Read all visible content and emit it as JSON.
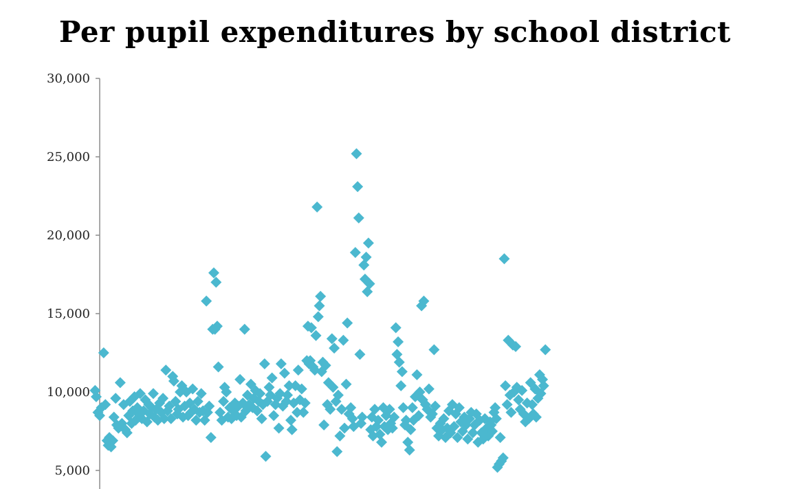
{
  "chart_data": {
    "type": "scatter",
    "title": "Per pupil expenditures by school district",
    "xlabel": "",
    "ylabel": "",
    "ylim": [
      5000,
      30000
    ],
    "yticks": [
      5000,
      10000,
      15000,
      20000,
      25000,
      30000
    ],
    "ytick_labels": [
      "5,000",
      "10,000",
      "15,000",
      "20,000",
      "25,000",
      "30,000"
    ],
    "grid": false,
    "marker": "diamond",
    "color": "#4bb8cf",
    "xlim": [
      0,
      1000
    ],
    "series": [
      {
        "points": [
          [
            4,
            10100
          ],
          [
            6,
            9700
          ],
          [
            9,
            8700
          ],
          [
            12,
            8500
          ],
          [
            15,
            9000
          ],
          [
            19,
            12500
          ],
          [
            22,
            9200
          ],
          [
            25,
            6900
          ],
          [
            27,
            6600
          ],
          [
            29,
            7100
          ],
          [
            32,
            6500
          ],
          [
            35,
            6900
          ],
          [
            37,
            8400
          ],
          [
            40,
            9600
          ],
          [
            42,
            7900
          ],
          [
            45,
            7700
          ],
          [
            48,
            10600
          ],
          [
            51,
            8000
          ],
          [
            54,
            9200
          ],
          [
            57,
            7600
          ],
          [
            60,
            7400
          ],
          [
            63,
            8500
          ],
          [
            65,
            9400
          ],
          [
            68,
            8000
          ],
          [
            70,
            8800
          ],
          [
            73,
            9700
          ],
          [
            75,
            8200
          ],
          [
            78,
            9000
          ],
          [
            80,
            8600
          ],
          [
            83,
            9900
          ],
          [
            86,
            8300
          ],
          [
            89,
            8800
          ],
          [
            92,
            9500
          ],
          [
            95,
            8100
          ],
          [
            98,
            9200
          ],
          [
            100,
            8600
          ],
          [
            103,
            9000
          ],
          [
            106,
            9900
          ],
          [
            108,
            8400
          ],
          [
            111,
            8900
          ],
          [
            114,
            8200
          ],
          [
            117,
            9300
          ],
          [
            120,
            8700
          ],
          [
            123,
            9600
          ],
          [
            125,
            8300
          ],
          [
            128,
            11400
          ],
          [
            131,
            8800
          ],
          [
            134,
            9100
          ],
          [
            137,
            8300
          ],
          [
            140,
            11000
          ],
          [
            142,
            10700
          ],
          [
            145,
            9400
          ],
          [
            148,
            8600
          ],
          [
            150,
            8900
          ],
          [
            153,
            10000
          ],
          [
            156,
            10400
          ],
          [
            158,
            8400
          ],
          [
            161,
            9100
          ],
          [
            164,
            10000
          ],
          [
            167,
            8500
          ],
          [
            170,
            9300
          ],
          [
            172,
            8700
          ],
          [
            175,
            10200
          ],
          [
            178,
            8900
          ],
          [
            181,
            8200
          ],
          [
            184,
            9400
          ],
          [
            187,
            8700
          ],
          [
            190,
            9900
          ],
          [
            193,
            8800
          ],
          [
            196,
            8200
          ],
          [
            199,
            15800
          ],
          [
            201,
            8700
          ],
          [
            204,
            9100
          ],
          [
            207,
            7100
          ],
          [
            210,
            14000
          ],
          [
            212,
            17600
          ],
          [
            214,
            14000
          ],
          [
            216,
            17000
          ],
          [
            218,
            14200
          ],
          [
            220,
            11600
          ],
          [
            223,
            8700
          ],
          [
            226,
            8200
          ],
          [
            229,
            9400
          ],
          [
            231,
            10300
          ],
          [
            234,
            10000
          ],
          [
            237,
            8400
          ],
          [
            240,
            9000
          ],
          [
            243,
            8300
          ],
          [
            246,
            8800
          ],
          [
            249,
            9300
          ],
          [
            252,
            8500
          ],
          [
            255,
            9100
          ],
          [
            258,
            10800
          ],
          [
            260,
            8400
          ],
          [
            263,
            9300
          ],
          [
            266,
            14000
          ],
          [
            268,
            8800
          ],
          [
            271,
            9800
          ],
          [
            274,
            9200
          ],
          [
            277,
            10500
          ],
          [
            280,
            9000
          ],
          [
            282,
            9600
          ],
          [
            285,
            10100
          ],
          [
            288,
            8800
          ],
          [
            291,
            9400
          ],
          [
            293,
            9900
          ],
          [
            296,
            8300
          ],
          [
            298,
            9200
          ],
          [
            301,
            11800
          ],
          [
            303,
            5900
          ],
          [
            306,
            9400
          ],
          [
            309,
            10300
          ],
          [
            311,
            9800
          ],
          [
            314,
            10900
          ],
          [
            317,
            8500
          ],
          [
            320,
            9200
          ],
          [
            323,
            9600
          ],
          [
            326,
            7700
          ],
          [
            328,
            9900
          ],
          [
            330,
            11800
          ],
          [
            333,
            9100
          ],
          [
            336,
            11200
          ],
          [
            339,
            9400
          ],
          [
            341,
            9800
          ],
          [
            344,
            10400
          ],
          [
            347,
            8200
          ],
          [
            349,
            7600
          ],
          [
            352,
            9300
          ],
          [
            355,
            10400
          ],
          [
            358,
            8700
          ],
          [
            360,
            11400
          ],
          [
            363,
            9500
          ],
          [
            366,
            10200
          ],
          [
            369,
            8700
          ],
          [
            372,
            9300
          ],
          [
            375,
            12000
          ],
          [
            377,
            14200
          ],
          [
            379,
            11800
          ],
          [
            381,
            12000
          ],
          [
            383,
            14100
          ],
          [
            386,
            11600
          ],
          [
            389,
            11400
          ],
          [
            391,
            13600
          ],
          [
            393,
            21800
          ],
          [
            395,
            14800
          ],
          [
            397,
            15500
          ],
          [
            399,
            16100
          ],
          [
            401,
            11300
          ],
          [
            403,
            11900
          ],
          [
            405,
            7900
          ],
          [
            408,
            11700
          ],
          [
            411,
            9200
          ],
          [
            413,
            10600
          ],
          [
            416,
            8900
          ],
          [
            419,
            13400
          ],
          [
            421,
            10300
          ],
          [
            423,
            12800
          ],
          [
            426,
            9400
          ],
          [
            428,
            6200
          ],
          [
            430,
            9800
          ],
          [
            433,
            7200
          ],
          [
            436,
            8900
          ],
          [
            439,
            13300
          ],
          [
            441,
            7700
          ],
          [
            444,
            10500
          ],
          [
            446,
            14400
          ],
          [
            449,
            8600
          ],
          [
            452,
            9000
          ],
          [
            455,
            8300
          ],
          [
            457,
            7800
          ],
          [
            460,
            18900
          ],
          [
            462,
            25200
          ],
          [
            464,
            23100
          ],
          [
            466,
            21100
          ],
          [
            468,
            12400
          ],
          [
            470,
            8000
          ],
          [
            472,
            8400
          ],
          [
            475,
            18100
          ],
          [
            477,
            17200
          ],
          [
            479,
            18600
          ],
          [
            481,
            16400
          ],
          [
            483,
            19500
          ],
          [
            485,
            16900
          ],
          [
            487,
            7600
          ],
          [
            489,
            8400
          ],
          [
            491,
            7200
          ],
          [
            494,
            8900
          ],
          [
            497,
            7800
          ],
          [
            500,
            8200
          ],
          [
            503,
            7300
          ],
          [
            506,
            6800
          ],
          [
            509,
            9000
          ],
          [
            511,
            7800
          ],
          [
            514,
            8500
          ],
          [
            517,
            7600
          ],
          [
            520,
            8900
          ],
          [
            522,
            8000
          ],
          [
            525,
            7700
          ],
          [
            528,
            8400
          ],
          [
            531,
            14100
          ],
          [
            533,
            12400
          ],
          [
            535,
            13200
          ],
          [
            537,
            11900
          ],
          [
            540,
            10400
          ],
          [
            542,
            11300
          ],
          [
            544,
            9000
          ],
          [
            547,
            7900
          ],
          [
            549,
            8200
          ],
          [
            552,
            6800
          ],
          [
            555,
            6300
          ],
          [
            557,
            7600
          ],
          [
            560,
            9000
          ],
          [
            562,
            8200
          ],
          [
            565,
            9700
          ],
          [
            568,
            11100
          ],
          [
            571,
            8500
          ],
          [
            573,
            10000
          ],
          [
            576,
            15500
          ],
          [
            578,
            9500
          ],
          [
            580,
            15800
          ],
          [
            583,
            9200
          ],
          [
            586,
            8900
          ],
          [
            589,
            10200
          ],
          [
            592,
            8400
          ],
          [
            595,
            8600
          ],
          [
            598,
            12700
          ],
          [
            600,
            9100
          ],
          [
            603,
            7700
          ],
          [
            606,
            7200
          ],
          [
            609,
            8000
          ],
          [
            612,
            7600
          ],
          [
            615,
            8300
          ],
          [
            618,
            7100
          ],
          [
            621,
            7700
          ],
          [
            624,
            8800
          ],
          [
            627,
            7400
          ],
          [
            630,
            9200
          ],
          [
            633,
            7800
          ],
          [
            636,
            8600
          ],
          [
            639,
            7100
          ],
          [
            642,
            9000
          ],
          [
            645,
            8100
          ],
          [
            648,
            7500
          ],
          [
            651,
            8400
          ],
          [
            654,
            7900
          ],
          [
            657,
            7000
          ],
          [
            660,
            8300
          ],
          [
            663,
            8700
          ],
          [
            666,
            7400
          ],
          [
            669,
            7900
          ],
          [
            672,
            8600
          ],
          [
            675,
            6800
          ],
          [
            678,
            8200
          ],
          [
            681,
            7400
          ],
          [
            684,
            7000
          ],
          [
            687,
            8300
          ],
          [
            690,
            7700
          ],
          [
            693,
            7200
          ],
          [
            696,
            8100
          ],
          [
            698,
            7900
          ],
          [
            700,
            7500
          ],
          [
            703,
            8700
          ],
          [
            705,
            9000
          ],
          [
            707,
            8300
          ],
          [
            709,
            5200
          ],
          [
            712,
            5400
          ],
          [
            714,
            7100
          ],
          [
            716,
            5600
          ],
          [
            719,
            5800
          ],
          [
            721,
            18500
          ],
          [
            723,
            10400
          ],
          [
            726,
            9200
          ],
          [
            728,
            13300
          ],
          [
            731,
            9800
          ],
          [
            733,
            8700
          ],
          [
            736,
            13000
          ],
          [
            738,
            10000
          ],
          [
            741,
            12900
          ],
          [
            743,
            10300
          ],
          [
            746,
            9500
          ],
          [
            749,
            8900
          ],
          [
            752,
            10100
          ],
          [
            755,
            8600
          ],
          [
            758,
            8100
          ],
          [
            761,
            9300
          ],
          [
            764,
            8300
          ],
          [
            767,
            10600
          ],
          [
            770,
            9200
          ],
          [
            772,
            8600
          ],
          [
            775,
            10200
          ],
          [
            777,
            8400
          ],
          [
            780,
            9600
          ],
          [
            783,
            11100
          ],
          [
            785,
            9900
          ],
          [
            788,
            10800
          ],
          [
            790,
            10400
          ],
          [
            793,
            12700
          ]
        ]
      }
    ]
  }
}
